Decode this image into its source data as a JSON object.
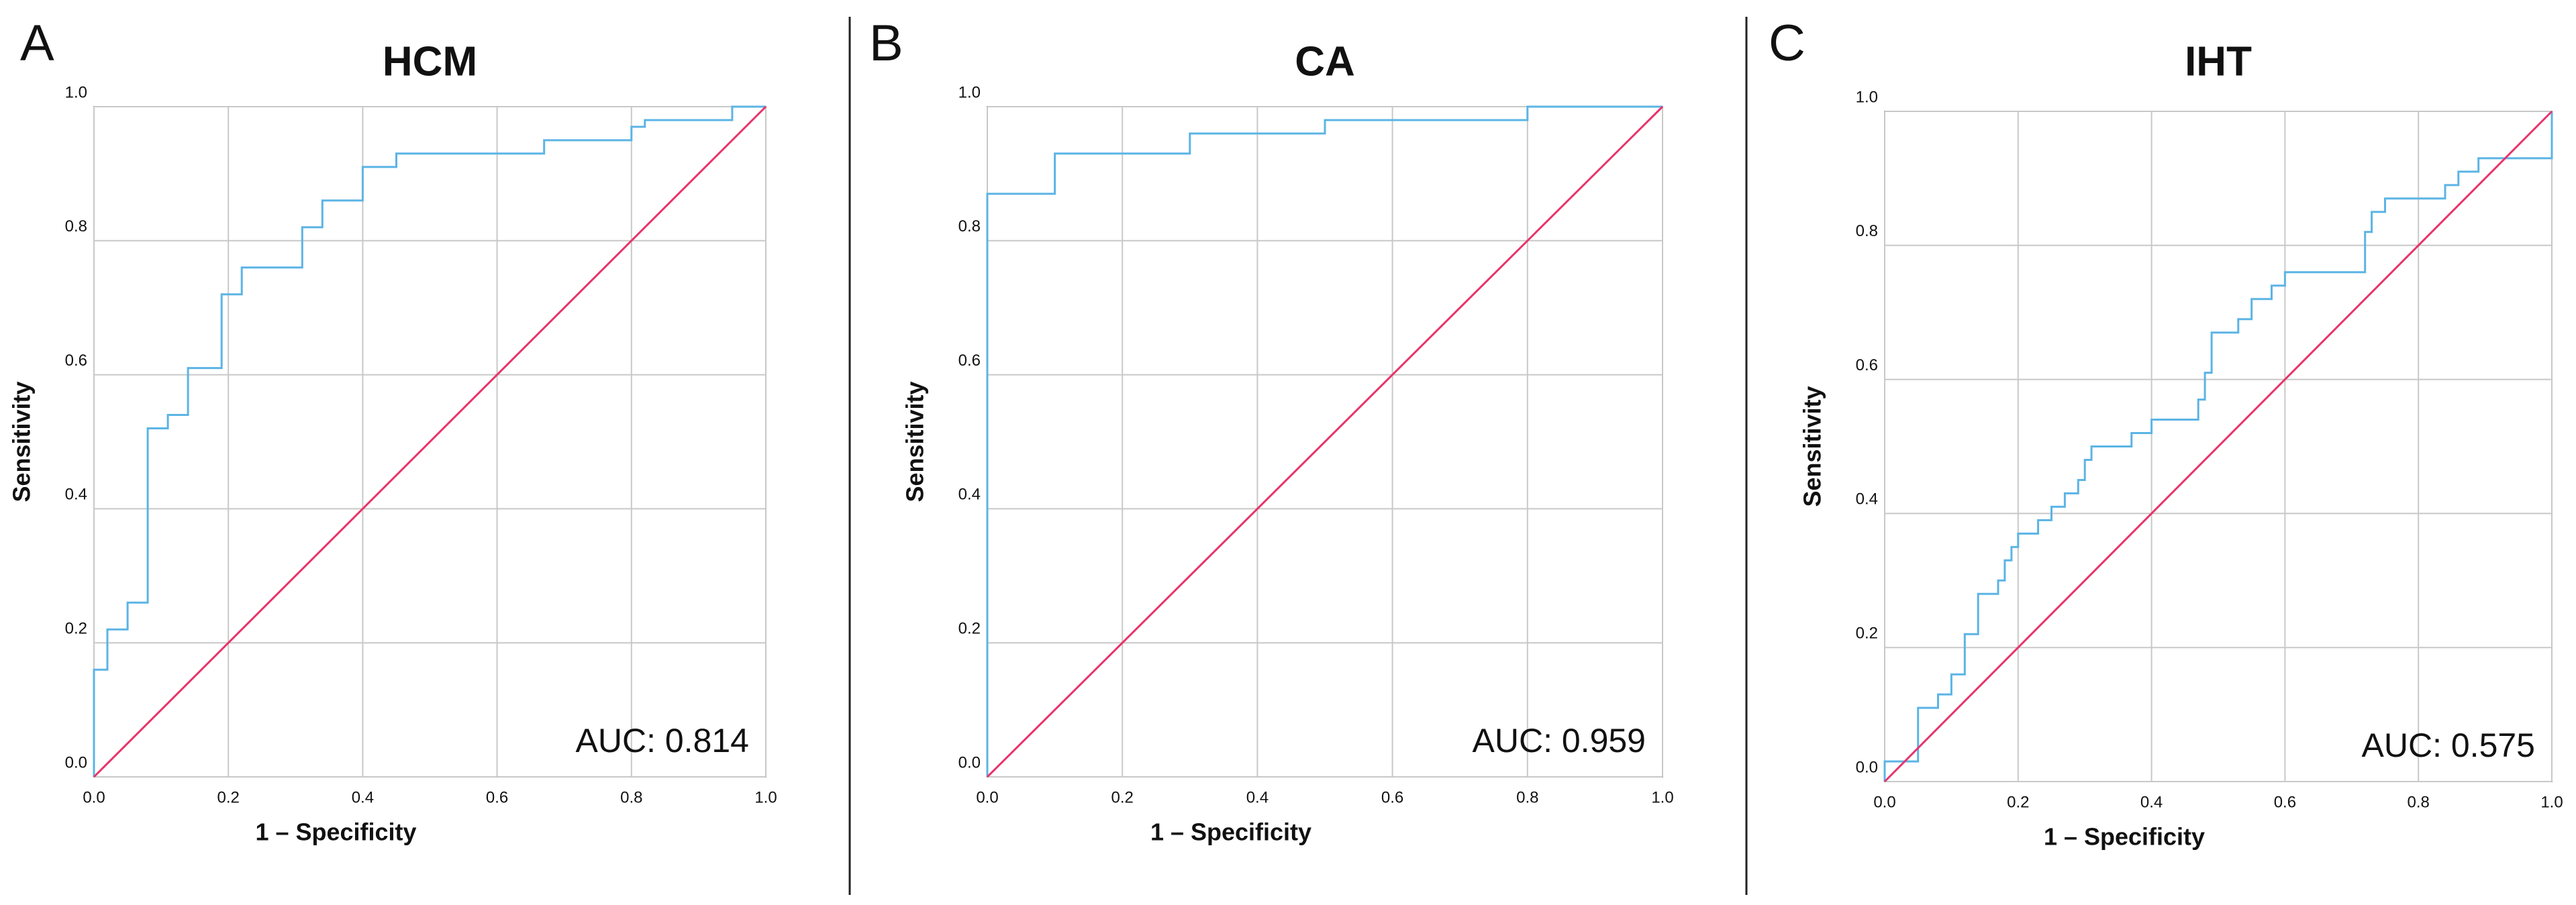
{
  "chart_data": [
    {
      "type": "line",
      "panel": "A",
      "title": "HCM",
      "xlabel": "1 – Specificity",
      "ylabel": "Sensitivity",
      "annotation": "AUC: 0.814",
      "xlim": [
        0,
        1
      ],
      "ylim": [
        0,
        1
      ],
      "grid": true,
      "xticks": [
        {
          "value": 0,
          "label": "0.0"
        },
        0.2,
        0.4,
        0.6,
        0.8,
        {
          "value": 1,
          "label": "1.0"
        }
      ],
      "yticks": [
        {
          "value": 0,
          "label": "0.0"
        },
        0.2,
        0.4,
        0.6,
        0.8,
        {
          "value": 1,
          "label": "1.0"
        }
      ],
      "series": [
        {
          "color": "#5bb4e5",
          "x": [
            0,
            0,
            0.02,
            0.02,
            0.05,
            0.05,
            0.08,
            0.08,
            0.11,
            0.11,
            0.14,
            0.14,
            0.19,
            0.19,
            0.22,
            0.22,
            0.31,
            0.31,
            0.34,
            0.34,
            0.4,
            0.4,
            0.45,
            0.45,
            0.67,
            0.67,
            0.8,
            0.8,
            0.82,
            0.82,
            0.95,
            0.95,
            1
          ],
          "values": [
            0,
            0.16,
            0.16,
            0.22,
            0.22,
            0.26,
            0.26,
            0.52,
            0.52,
            0.54,
            0.54,
            0.61,
            0.61,
            0.72,
            0.72,
            0.76,
            0.76,
            0.82,
            0.82,
            0.86,
            0.86,
            0.91,
            0.91,
            0.93,
            0.93,
            0.95,
            0.95,
            0.97,
            0.97,
            0.98,
            0.98,
            1,
            1
          ]
        },
        {
          "color": "#e8336b",
          "x": [
            0,
            1
          ],
          "values": [
            0,
            1
          ]
        }
      ]
    },
    {
      "type": "line",
      "panel": "B",
      "title": "CA",
      "xlabel": "1 – Specificity",
      "ylabel": "Sensitivity",
      "annotation": "AUC: 0.959",
      "xlim": [
        0,
        1
      ],
      "ylim": [
        0,
        1
      ],
      "grid": true,
      "xticks": [
        {
          "value": 0,
          "label": "0.0"
        },
        0.2,
        0.4,
        0.6,
        0.8,
        {
          "value": 1,
          "label": "1.0"
        }
      ],
      "yticks": [
        {
          "value": 0,
          "label": "0.0"
        },
        0.2,
        0.4,
        0.6,
        0.8,
        {
          "value": 1,
          "label": "1.0"
        }
      ],
      "series": [
        {
          "color": "#5bb4e5",
          "x": [
            0,
            0,
            0.1,
            0.1,
            0.3,
            0.3,
            0.5,
            0.5,
            0.8,
            0.8,
            1
          ],
          "values": [
            0,
            0.87,
            0.87,
            0.93,
            0.93,
            0.96,
            0.96,
            0.98,
            0.98,
            1,
            1
          ]
        },
        {
          "color": "#e8336b",
          "x": [
            0,
            1
          ],
          "values": [
            0,
            1
          ]
        }
      ]
    },
    {
      "type": "line",
      "panel": "C",
      "title": "IHT",
      "xlabel": "1 – Specificity",
      "ylabel": "Sensitivity",
      "annotation": "AUC: 0.575",
      "xlim": [
        0,
        1
      ],
      "ylim": [
        0,
        1
      ],
      "grid": true,
      "xticks": [
        {
          "value": 0,
          "label": "0.0"
        },
        0.2,
        0.4,
        0.6,
        0.8,
        {
          "value": 1,
          "label": "1.0"
        }
      ],
      "yticks": [
        {
          "value": 0,
          "label": "0.0"
        },
        0.2,
        0.4,
        0.6,
        0.8,
        {
          "value": 1,
          "label": "1.0"
        }
      ],
      "series": [
        {
          "color": "#5bb4e5",
          "x": [
            0,
            0,
            0.05,
            0.05,
            0.08,
            0.08,
            0.1,
            0.1,
            0.12,
            0.12,
            0.14,
            0.14,
            0.17,
            0.17,
            0.18,
            0.18,
            0.19,
            0.19,
            0.2,
            0.2,
            0.23,
            0.23,
            0.25,
            0.25,
            0.27,
            0.27,
            0.29,
            0.29,
            0.3,
            0.3,
            0.31,
            0.31,
            0.37,
            0.37,
            0.4,
            0.4,
            0.47,
            0.47,
            0.48,
            0.48,
            0.49,
            0.49,
            0.53,
            0.53,
            0.55,
            0.55,
            0.58,
            0.58,
            0.6,
            0.6,
            0.72,
            0.72,
            0.73,
            0.73,
            0.75,
            0.75,
            0.84,
            0.84,
            0.86,
            0.86,
            0.89,
            0.89,
            1,
            1
          ],
          "values": [
            0,
            0.03,
            0.03,
            0.11,
            0.11,
            0.13,
            0.13,
            0.16,
            0.16,
            0.22,
            0.22,
            0.28,
            0.28,
            0.3,
            0.3,
            0.33,
            0.33,
            0.35,
            0.35,
            0.37,
            0.37,
            0.39,
            0.39,
            0.41,
            0.41,
            0.43,
            0.43,
            0.45,
            0.45,
            0.48,
            0.48,
            0.5,
            0.5,
            0.52,
            0.52,
            0.54,
            0.54,
            0.57,
            0.57,
            0.61,
            0.61,
            0.67,
            0.67,
            0.69,
            0.69,
            0.72,
            0.72,
            0.74,
            0.74,
            0.76,
            0.76,
            0.82,
            0.82,
            0.85,
            0.85,
            0.87,
            0.87,
            0.89,
            0.89,
            0.91,
            0.91,
            0.93,
            0.93,
            1
          ]
        },
        {
          "color": "#e8336b",
          "x": [
            0,
            1
          ],
          "values": [
            0,
            1
          ]
        }
      ]
    }
  ]
}
